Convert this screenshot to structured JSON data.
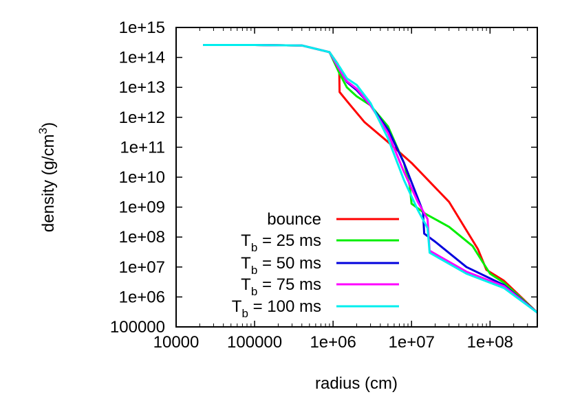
{
  "chart_data": {
    "type": "line",
    "xlabel": "radius (cm)",
    "ylabel_parts": {
      "main": "density (g/cm",
      "sup": "3",
      "close": ")"
    },
    "x_scale": "log",
    "y_scale": "log",
    "xlim": [
      10000,
      400000000
    ],
    "ylim": [
      100000,
      1000000000000000.0
    ],
    "x_ticks": [
      {
        "value": 10000,
        "label": "10000"
      },
      {
        "value": 100000,
        "label": "100000"
      },
      {
        "value": 1000000,
        "label": "1e+06"
      },
      {
        "value": 10000000,
        "label": "1e+07"
      },
      {
        "value": 100000000,
        "label": "1e+08"
      }
    ],
    "y_ticks": [
      {
        "value": 1000000000000000.0,
        "label": "1e+15"
      },
      {
        "value": 100000000000000.0,
        "label": "1e+14"
      },
      {
        "value": 10000000000000.0,
        "label": "1e+13"
      },
      {
        "value": 1000000000000.0,
        "label": "1e+12"
      },
      {
        "value": 100000000000.0,
        "label": "1e+11"
      },
      {
        "value": 10000000000.0,
        "label": "1e+10"
      },
      {
        "value": 1000000000.0,
        "label": "1e+09"
      },
      {
        "value": 100000000.0,
        "label": "1e+08"
      },
      {
        "value": 10000000.0,
        "label": "1e+07"
      },
      {
        "value": 1000000.0,
        "label": "1e+06"
      },
      {
        "value": 100000.0,
        "label": "100000"
      }
    ],
    "grid": false,
    "legend_position": "lower-left inside plot",
    "series": [
      {
        "name": "bounce",
        "legend_main": "bounce",
        "legend_sub": "",
        "legend_rest": "",
        "color": "#ff0000",
        "x": [
          22000,
          100000,
          400000,
          900000,
          1150000,
          1200000,
          1210000,
          1500000,
          2500000,
          5000000,
          10000000,
          30000000,
          70000000,
          90000000,
          150000000,
          400000000
        ],
        "y": [
          260000000000000.0,
          260000000000000.0,
          250000000000000.0,
          150000000000000.0,
          60000000000000.0,
          30000000000000.0,
          7000000000000.0,
          3500000000000.0,
          700000000000.0,
          150000000000.0,
          30000000000.0,
          1500000000.0,
          40000000.0,
          8000000.0,
          3500000.0,
          300000.0
        ]
      },
      {
        "name": "T_b = 25 ms",
        "legend_main": "T",
        "legend_sub": "b",
        "legend_rest": " = 25 ms",
        "color": "#00ee00",
        "x": [
          22000,
          100000,
          400000,
          900000,
          1200000,
          1500000,
          2000000,
          3000000,
          5000000,
          8000000,
          9500000,
          10000000,
          15000000,
          30000000,
          60000000,
          100000000,
          150000000,
          400000000
        ],
        "y": [
          260000000000000.0,
          260000000000000.0,
          250000000000000.0,
          150000000000000.0,
          30000000000000.0,
          10000000000000.0,
          5000000000000.0,
          2500000000000.0,
          500000000000.0,
          30000000000.0,
          5000000000.0,
          1300000000.0,
          600000000.0,
          220000000.0,
          50000000.0,
          6000000.0,
          3000000.0,
          300000.0
        ]
      },
      {
        "name": "T_b = 50 ms",
        "legend_main": "T",
        "legend_sub": "b",
        "legend_rest": " = 50 ms",
        "color": "#0000dd",
        "x": [
          22000,
          100000,
          400000,
          900000,
          1200000,
          1500000,
          2000000,
          3000000,
          5000000,
          8000000,
          12000000,
          14000000,
          14500000,
          20000000,
          50000000,
          150000000,
          400000000
        ],
        "y": [
          260000000000000.0,
          260000000000000.0,
          250000000000000.0,
          150000000000000.0,
          40000000000000.0,
          15000000000000.0,
          8000000000000.0,
          2500000000000.0,
          400000000000.0,
          30000000000.0,
          2000000000.0,
          700000000.0,
          130000000.0,
          70000000.0,
          10000000.0,
          2500000.0,
          300000.0
        ]
      },
      {
        "name": "T_b = 75 ms",
        "legend_main": "T",
        "legend_sub": "b",
        "legend_rest": " = 75 ms",
        "color": "#ff00ff",
        "x": [
          22000,
          100000,
          400000,
          900000,
          1200000,
          1500000,
          2000000,
          3000000,
          5000000,
          8000000,
          12000000,
          16000000,
          17000000,
          50000000,
          150000000,
          400000000
        ],
        "y": [
          260000000000000.0,
          260000000000000.0,
          250000000000000.0,
          150000000000000.0,
          40000000000000.0,
          16000000000000.0,
          9000000000000.0,
          2500000000000.0,
          300000000000.0,
          15000000000.0,
          1500000000.0,
          400000000.0,
          35000000.0,
          7000000.0,
          2300000.0,
          300000.0
        ]
      },
      {
        "name": "T_b = 100 ms",
        "legend_main": "T",
        "legend_sub": "b",
        "legend_rest": " = 100 ms",
        "color": "#00eeee",
        "x": [
          22000,
          100000,
          400000,
          900000,
          1200000,
          1500000,
          2000000,
          3000000,
          5000000,
          8000000,
          12000000,
          16000000,
          17000000,
          50000000,
          150000000,
          400000000
        ],
        "y": [
          260000000000000.0,
          260000000000000.0,
          250000000000000.0,
          150000000000000.0,
          50000000000000.0,
          20000000000000.0,
          12000000000000.0,
          3000000000000.0,
          200000000000.0,
          8000000000.0,
          800000000.0,
          200000000.0,
          30000000.0,
          6000000.0,
          2000000.0,
          300000.0
        ]
      }
    ]
  }
}
